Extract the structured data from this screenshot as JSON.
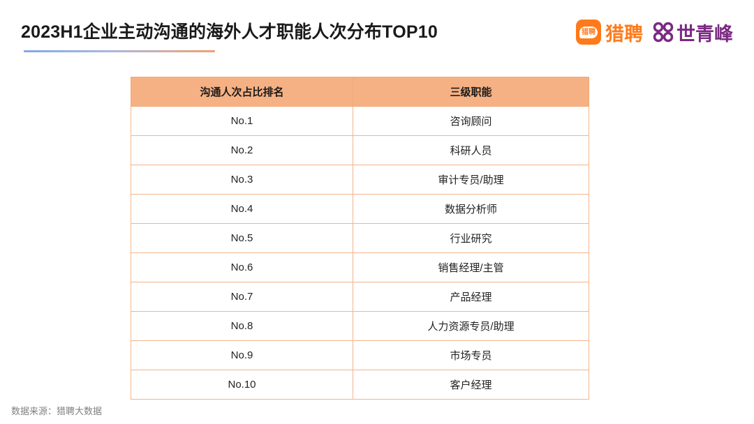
{
  "title": "2023H1企业主动沟通的海外人才职能人次分布TOP10",
  "logos": {
    "liepin_badge": "猎聘",
    "liepin_text": "猎聘",
    "shiqingfeng_text": "世青峰",
    "liepin_color": "#ff7a1a",
    "shiqingfeng_color": "#7a2a83"
  },
  "table": {
    "headers": [
      "沟通人次占比排名",
      "三级职能"
    ],
    "rows": [
      {
        "rank": "No.1",
        "role": "咨询顾问"
      },
      {
        "rank": "No.2",
        "role": "科研人员"
      },
      {
        "rank": "No.3",
        "role": "审计专员/助理"
      },
      {
        "rank": "No.4",
        "role": "数据分析师"
      },
      {
        "rank": "No.5",
        "role": "行业研究"
      },
      {
        "rank": "No.6",
        "role": "销售经理/主管"
      },
      {
        "rank": "No.7",
        "role": "产品经理"
      },
      {
        "rank": "No.8",
        "role": "人力资源专员/助理"
      },
      {
        "rank": "No.9",
        "role": "市场专员"
      },
      {
        "rank": "No.10",
        "role": "客户经理"
      }
    ],
    "header_color": "#f5b183"
  },
  "source": "数据来源：猎聘大数据"
}
